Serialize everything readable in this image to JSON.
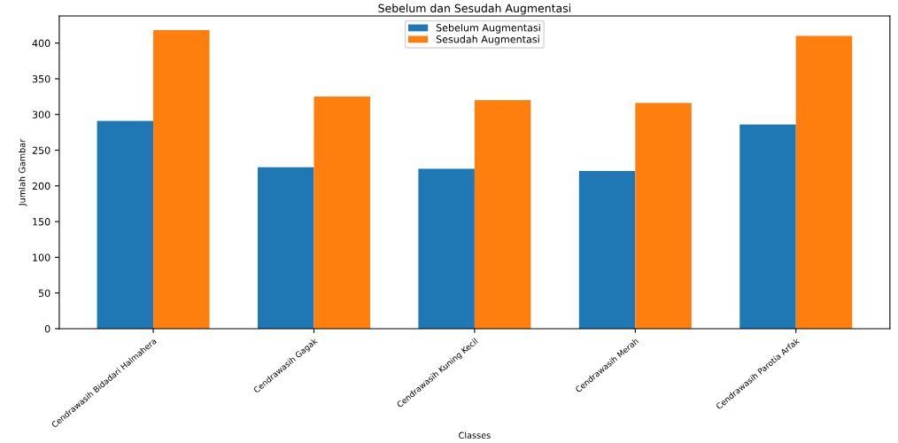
{
  "chart_data": {
    "type": "bar",
    "title": "Sebelum dan Sesudah Augmentasi",
    "xlabel": "Classes",
    "ylabel": "Jumlah Gambar",
    "categories": [
      "Cendrawasih Bidadari Halmahera",
      "Cendrawasih Gagak",
      "Cendrawasih Kuning Kecil",
      "Cendrawasih Merah",
      "Cendrawasih Parotia Arfak"
    ],
    "series": [
      {
        "name": "Sebelum Augmentasi",
        "color": "#1f77b4",
        "values": [
          291,
          226,
          224,
          221,
          286
        ]
      },
      {
        "name": "Sesudah Augmentasi",
        "color": "#ff7f0e",
        "values": [
          418,
          325,
          320,
          316,
          410
        ]
      }
    ],
    "ylim": [
      0,
      438
    ],
    "yticks": [
      0,
      50,
      100,
      150,
      200,
      250,
      300,
      350,
      400
    ],
    "legend": "upper center",
    "grid": false
  }
}
